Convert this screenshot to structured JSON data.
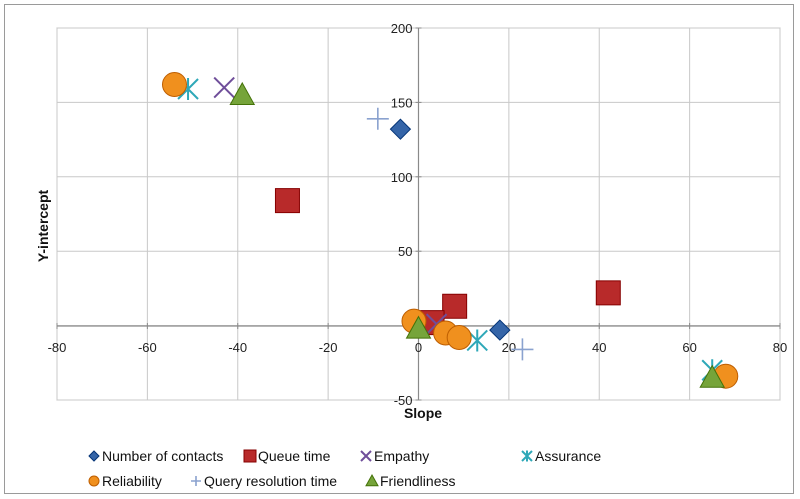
{
  "chart_data": {
    "type": "scatter",
    "title": "",
    "xlabel": "Slope",
    "ylabel": "Y-intercept",
    "xlim": [
      -80,
      80
    ],
    "ylim": [
      -50,
      200
    ],
    "xticks": [
      -80,
      -60,
      -40,
      -20,
      0,
      20,
      40,
      60,
      80
    ],
    "yticks": [
      -50,
      0,
      50,
      100,
      150,
      200
    ],
    "grid": "vertical and horizontal",
    "legend": "bottom",
    "series": [
      {
        "name": "Number of contacts",
        "marker": "diamond",
        "color": "#3565a8",
        "points": [
          [
            -4,
            132
          ],
          [
            18,
            -3
          ]
        ]
      },
      {
        "name": "Queue time",
        "marker": "square",
        "color": "#b82a2a",
        "points": [
          [
            -29,
            84
          ],
          [
            8,
            13
          ],
          [
            3,
            2
          ],
          [
            42,
            22
          ]
        ]
      },
      {
        "name": "Empathy",
        "marker": "x",
        "color": "#6f4e9a",
        "points": [
          [
            -43,
            160
          ],
          [
            4,
            1
          ]
        ]
      },
      {
        "name": "Assurance",
        "marker": "asterisk",
        "color": "#2ea8b8",
        "points": [
          [
            -51,
            159
          ],
          [
            13,
            -10
          ],
          [
            65,
            -30
          ]
        ]
      },
      {
        "name": "Reliability",
        "marker": "circle",
        "color": "#f0901e",
        "points": [
          [
            -54,
            162
          ],
          [
            -1,
            3
          ],
          [
            6,
            -5
          ],
          [
            9,
            -8
          ],
          [
            68,
            -34
          ]
        ]
      },
      {
        "name": "Query resolution time",
        "marker": "plus",
        "color": "#8aa2cf",
        "points": [
          [
            -9,
            139
          ],
          [
            23,
            -16
          ]
        ]
      },
      {
        "name": "Friendliness",
        "marker": "triangle",
        "color": "#76a43a",
        "points": [
          [
            -39,
            155
          ],
          [
            0,
            -2
          ],
          [
            65,
            -35
          ]
        ]
      }
    ]
  }
}
